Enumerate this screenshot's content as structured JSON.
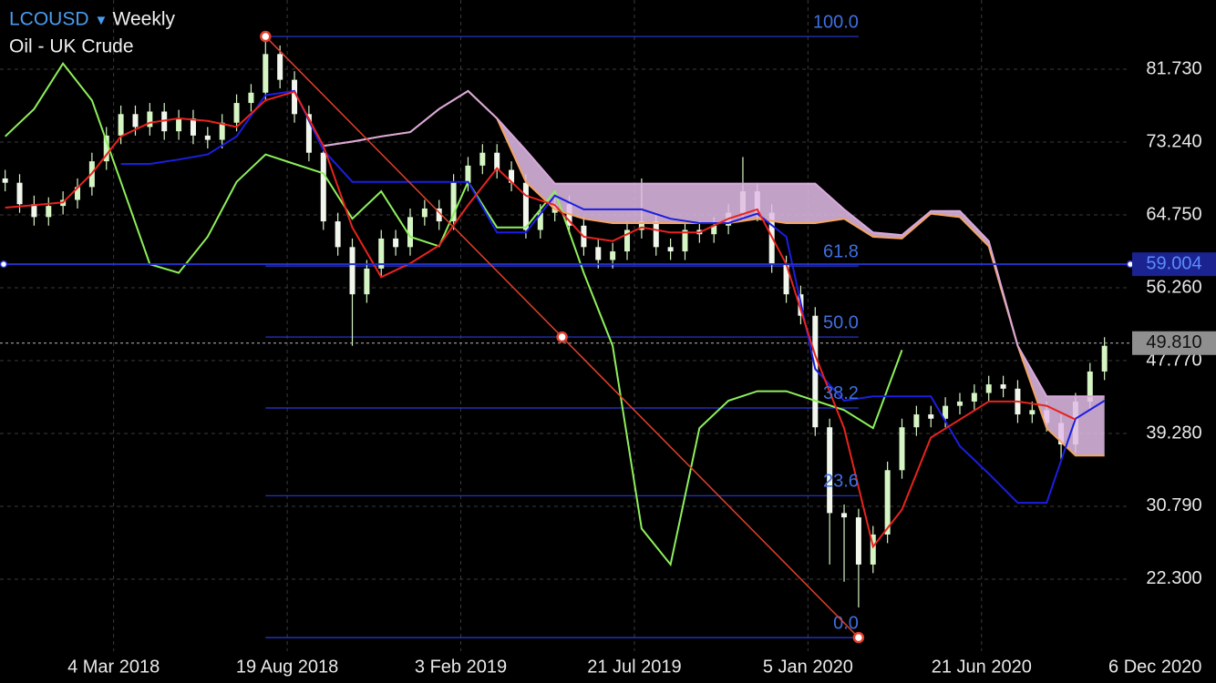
{
  "chart_data": {
    "type": "candlestick",
    "title": "LCOUSD",
    "timeframe": "Weekly",
    "subtitle": "Oil - UK Crude",
    "xlim": [
      "2017-11-14",
      "2020-11-12"
    ],
    "ylim": [
      13.91,
      89.8
    ],
    "xticks": [
      {
        "value": "2018-03-04",
        "label": "4 Mar 2018"
      },
      {
        "value": "2018-08-19",
        "label": "19 Aug 2018"
      },
      {
        "value": "2019-02-03",
        "label": "3 Feb 2019"
      },
      {
        "value": "2019-07-21",
        "label": "21 Jul 2019"
      },
      {
        "value": "2020-01-05",
        "label": "5 Jan 2020"
      },
      {
        "value": "2020-06-21",
        "label": "21 Jun 2020"
      },
      {
        "value": "2020-12-06",
        "label": "6 Dec 2020"
      }
    ],
    "yticks": [
      {
        "value": 81.73,
        "label": "81.730"
      },
      {
        "value": 73.24,
        "label": "73.240"
      },
      {
        "value": 64.75,
        "label": "64.750"
      },
      {
        "value": 56.26,
        "label": "56.260"
      },
      {
        "value": 47.77,
        "label": "47.770"
      },
      {
        "value": 39.28,
        "label": "39.280"
      },
      {
        "value": 30.79,
        "label": "30.790"
      },
      {
        "value": 22.3,
        "label": "22.300"
      }
    ],
    "grid": true,
    "candles": {
      "up_color": "#d6f5c4",
      "down_color": "#f2f7ee",
      "x": [
        "2017-11-19",
        "2017-12-03",
        "2017-12-17",
        "2017-12-31",
        "2018-01-14",
        "2018-01-28",
        "2018-02-11",
        "2018-02-25",
        "2018-03-11",
        "2018-03-25",
        "2018-04-08",
        "2018-04-22",
        "2018-05-06",
        "2018-05-20",
        "2018-06-03",
        "2018-06-17",
        "2018-07-01",
        "2018-07-15",
        "2018-07-29",
        "2018-08-12",
        "2018-08-26",
        "2018-09-09",
        "2018-09-23",
        "2018-10-07",
        "2018-10-21",
        "2018-11-04",
        "2018-11-18",
        "2018-12-02",
        "2018-12-16",
        "2018-12-30",
        "2019-01-13",
        "2019-01-27",
        "2019-02-10",
        "2019-02-24",
        "2019-03-10",
        "2019-03-24",
        "2019-04-07",
        "2019-04-21",
        "2019-05-05",
        "2019-05-19",
        "2019-06-02",
        "2019-06-16",
        "2019-06-30",
        "2019-07-14",
        "2019-07-28",
        "2019-08-11",
        "2019-08-25",
        "2019-09-08",
        "2019-09-22",
        "2019-10-06",
        "2019-10-20",
        "2019-11-03",
        "2019-11-17",
        "2019-12-01",
        "2019-12-15",
        "2019-12-29",
        "2020-01-12",
        "2020-01-26",
        "2020-02-09",
        "2020-02-23",
        "2020-03-08",
        "2020-03-22",
        "2020-04-05",
        "2020-04-19",
        "2020-05-03",
        "2020-05-17",
        "2020-05-31",
        "2020-06-14",
        "2020-06-28",
        "2020-07-12",
        "2020-07-26",
        "2020-08-09",
        "2020-08-23",
        "2020-09-06",
        "2020-09-20",
        "2020-10-04",
        "2020-10-18"
      ],
      "open": [
        69.0,
        68.5,
        66.0,
        64.5,
        65.8,
        66.5,
        68.0,
        71.0,
        74.0,
        76.5,
        75.0,
        76.8,
        74.5,
        76.0,
        74.0,
        73.5,
        75.5,
        77.8,
        79.0,
        83.5,
        80.5,
        76.5,
        72.0,
        64.0,
        61.0,
        55.5,
        58.5,
        62.0,
        61.0,
        64.5,
        65.5,
        64.0,
        68.5,
        70.5,
        72.0,
        70.0,
        68.5,
        63.0,
        65.0,
        66.0,
        63.5,
        61.0,
        59.5,
        60.5,
        63.0,
        64.0,
        61.0,
        60.5,
        63.0,
        62.5,
        63.5,
        65.0,
        67.5,
        65.0,
        59.0,
        55.5,
        53.0,
        40.0,
        30.0,
        29.5,
        24.0,
        27.5,
        35.0,
        40.0,
        41.5,
        41.0,
        42.5,
        43.0,
        44.0,
        45.0,
        44.5,
        41.5,
        42.0,
        40.5,
        38.0,
        43.0,
        46.5
      ],
      "high": [
        70.0,
        69.5,
        67.0,
        66.8,
        67.5,
        69.0,
        72.0,
        75.0,
        77.5,
        77.5,
        77.8,
        77.8,
        77.0,
        77.0,
        75.0,
        76.5,
        78.8,
        80.0,
        85.5,
        84.5,
        81.5,
        77.5,
        73.0,
        65.0,
        62.0,
        59.5,
        63.0,
        63.0,
        65.5,
        66.5,
        66.5,
        69.5,
        71.5,
        73.0,
        73.0,
        71.0,
        69.5,
        66.0,
        67.0,
        67.0,
        64.5,
        62.0,
        61.5,
        64.0,
        69.0,
        65.0,
        62.0,
        64.0,
        64.0,
        64.5,
        66.0,
        71.5,
        68.5,
        66.0,
        60.0,
        56.5,
        54.0,
        41.0,
        31.0,
        30.5,
        28.5,
        36.0,
        41.0,
        42.5,
        42.5,
        43.5,
        44.0,
        45.0,
        46.0,
        46.0,
        45.5,
        43.0,
        43.0,
        41.5,
        44.0,
        47.5,
        50.5
      ],
      "low": [
        67.5,
        65.0,
        63.5,
        63.5,
        64.8,
        65.5,
        67.0,
        70.0,
        73.0,
        74.0,
        74.0,
        73.5,
        73.5,
        73.0,
        72.5,
        72.5,
        74.5,
        76.8,
        78.0,
        79.5,
        75.5,
        71.0,
        63.0,
        60.0,
        49.5,
        54.5,
        57.5,
        60.0,
        60.0,
        63.5,
        63.0,
        63.0,
        67.5,
        69.5,
        69.0,
        67.5,
        62.0,
        62.0,
        64.0,
        62.5,
        60.0,
        58.5,
        58.5,
        59.5,
        62.0,
        60.0,
        59.5,
        59.5,
        61.5,
        61.5,
        62.5,
        64.0,
        64.0,
        58.0,
        54.5,
        52.0,
        39.0,
        24.0,
        22.0,
        19.0,
        23.0,
        26.5,
        34.0,
        39.0,
        40.0,
        40.0,
        41.5,
        42.0,
        43.0,
        43.5,
        40.5,
        40.5,
        39.5,
        36.0,
        37.0,
        42.0,
        45.5
      ],
      "close": [
        68.5,
        66.0,
        64.5,
        65.8,
        66.5,
        68.0,
        71.0,
        74.0,
        76.5,
        75.0,
        76.8,
        74.5,
        76.0,
        74.0,
        73.5,
        75.5,
        77.8,
        79.0,
        83.5,
        80.5,
        76.5,
        72.0,
        64.0,
        61.0,
        55.5,
        58.5,
        62.0,
        61.0,
        64.5,
        65.5,
        64.0,
        68.5,
        70.5,
        72.0,
        70.0,
        68.5,
        63.0,
        65.0,
        66.0,
        63.5,
        61.0,
        59.5,
        60.5,
        63.0,
        64.0,
        61.0,
        60.5,
        63.0,
        62.5,
        63.5,
        65.0,
        67.5,
        65.0,
        59.0,
        55.5,
        53.0,
        40.0,
        30.0,
        29.5,
        24.0,
        27.5,
        35.0,
        40.0,
        41.5,
        41.0,
        42.5,
        43.0,
        44.0,
        45.0,
        44.5,
        41.5,
        42.0,
        40.5,
        38.0,
        43.0,
        46.5,
        49.5
      ]
    },
    "indicators": {
      "x": [
        "2017-11-19",
        "2017-12-17",
        "2018-01-14",
        "2018-02-11",
        "2018-03-11",
        "2018-04-08",
        "2018-05-06",
        "2018-06-03",
        "2018-07-01",
        "2018-07-29",
        "2018-08-26",
        "2018-09-23",
        "2018-10-21",
        "2018-11-18",
        "2018-12-16",
        "2019-01-13",
        "2019-02-10",
        "2019-03-10",
        "2019-04-07",
        "2019-05-05",
        "2019-06-02",
        "2019-06-30",
        "2019-07-28",
        "2019-08-25",
        "2019-09-22",
        "2019-10-20",
        "2019-11-17",
        "2019-12-15",
        "2020-01-12",
        "2020-02-09",
        "2020-03-08",
        "2020-04-05",
        "2020-05-03",
        "2020-05-31",
        "2020-06-28",
        "2020-07-26",
        "2020-08-23",
        "2020-09-20",
        "2020-10-18"
      ],
      "cloud_color": "#e3bde9",
      "span_a": {
        "color": "#f4a460",
        "values": [
          null,
          null,
          null,
          null,
          null,
          null,
          null,
          null,
          null,
          null,
          null,
          72.8,
          73.3,
          73.9,
          74.4,
          77.1,
          79.2,
          76.0,
          68.6,
          65.4,
          64.3,
          63.8,
          63.8,
          63.8,
          63.8,
          63.8,
          64.3,
          63.8,
          63.8,
          64.3,
          62.2,
          62.0,
          64.9,
          64.5,
          61.1,
          49.5,
          39.9,
          36.7,
          36.7
        ]
      },
      "span_b": {
        "color": "#d9a8dc",
        "values": [
          null,
          null,
          null,
          null,
          null,
          null,
          null,
          null,
          null,
          null,
          null,
          72.8,
          73.3,
          73.9,
          74.4,
          77.1,
          79.2,
          76.0,
          72.3,
          68.4,
          68.4,
          68.4,
          68.4,
          68.4,
          68.4,
          68.4,
          68.4,
          68.4,
          68.4,
          65.4,
          62.7,
          62.4,
          65.2,
          65.2,
          61.7,
          49.5,
          43.6,
          43.6,
          43.6
        ]
      },
      "tenkan": {
        "color": "#e8231e",
        "values": [
          65.6,
          65.9,
          66.2,
          69.6,
          73.9,
          75.5,
          76.0,
          75.7,
          75.0,
          78.1,
          79.1,
          72.8,
          63.3,
          57.5,
          59.1,
          61.2,
          65.9,
          70.2,
          67.0,
          65.9,
          62.2,
          61.7,
          63.3,
          62.7,
          62.7,
          64.3,
          65.4,
          59.0,
          48.4,
          39.9,
          26.1,
          30.4,
          38.8,
          40.9,
          43.0,
          43.0,
          42.5,
          40.9,
          null
        ]
      },
      "kijun": {
        "color": "#1a1ee0",
        "values": [
          null,
          null,
          null,
          null,
          70.7,
          70.7,
          71.2,
          71.8,
          73.9,
          78.7,
          79.2,
          72.3,
          68.6,
          68.6,
          68.6,
          68.6,
          68.6,
          62.7,
          62.7,
          67.0,
          65.4,
          65.4,
          65.4,
          64.3,
          63.8,
          63.8,
          64.9,
          62.2,
          46.8,
          43.1,
          43.6,
          43.6,
          43.6,
          37.8,
          34.6,
          31.2,
          31.2,
          41.0,
          43.1
        ]
      },
      "chikou": {
        "color": "#8ef05a",
        "values": [
          73.9,
          77.1,
          82.4,
          78.1,
          68.6,
          59.0,
          58.0,
          62.2,
          68.6,
          71.8,
          70.7,
          69.6,
          64.3,
          67.5,
          62.2,
          61.1,
          68.6,
          63.3,
          63.3,
          67.5,
          58.0,
          49.5,
          28.2,
          24.0,
          39.9,
          43.1,
          44.2,
          44.2,
          43.1,
          42.0,
          39.9,
          49.0,
          null,
          null,
          null,
          null,
          null,
          null,
          null
        ]
      }
    },
    "fib": {
      "start": "2018-07-29",
      "end": "2020-02-23",
      "high": 85.55,
      "low": 15.49,
      "color": "#2a3ad8",
      "label_color": "#3f6fe0",
      "trend_color": "#e0402c",
      "levels": [
        {
          "value": 100,
          "label": "100.0"
        },
        61.8,
        {
          "value": 50,
          "label": "50.0"
        },
        38.2,
        23.6,
        {
          "value": 0,
          "label": "0.0"
        }
      ]
    },
    "hline": 59.004,
    "last": {
      "value": 49.81,
      "label": "49.810"
    }
  }
}
